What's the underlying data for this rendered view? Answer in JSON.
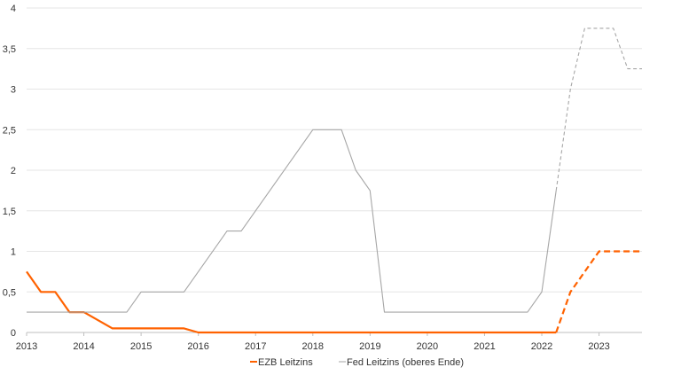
{
  "chart_data": {
    "type": "line",
    "title": "",
    "xlabel": "",
    "ylabel": "",
    "xlim": [
      2013,
      2023.75
    ],
    "ylim": [
      0,
      4
    ],
    "x_ticks": [
      "2013",
      "2014",
      "2015",
      "2016",
      "2017",
      "2018",
      "2019",
      "2020",
      "2021",
      "2022",
      "2023"
    ],
    "y_ticks": [
      "0",
      "0,5",
      "1",
      "1,5",
      "2",
      "2,5",
      "3",
      "3,5",
      "4"
    ],
    "grid": "horizontal",
    "legend": "bottom",
    "series": [
      {
        "name": "EZB Leitzins",
        "color": "#ff6200",
        "style": "solid-then-dashed",
        "points": [
          [
            2013.0,
            0.75
          ],
          [
            2013.25,
            0.5
          ],
          [
            2013.5,
            0.5
          ],
          [
            2013.75,
            0.25
          ],
          [
            2014.0,
            0.25
          ],
          [
            2014.5,
            0.05
          ],
          [
            2015.75,
            0.05
          ],
          [
            2016.0,
            0.0
          ],
          [
            2022.25,
            0.0
          ]
        ],
        "forecast_points": [
          [
            2022.25,
            0.0
          ],
          [
            2022.5,
            0.5
          ],
          [
            2023.0,
            1.0
          ],
          [
            2023.75,
            1.0
          ]
        ]
      },
      {
        "name": "Fed Leitzins (oberes Ende)",
        "color": "#a6a6a6",
        "style": "solid-then-dashed",
        "points": [
          [
            2013.0,
            0.25
          ],
          [
            2014.75,
            0.25
          ],
          [
            2015.0,
            0.5
          ],
          [
            2015.75,
            0.5
          ],
          [
            2016.5,
            1.25
          ],
          [
            2016.75,
            1.25
          ],
          [
            2018.0,
            2.5
          ],
          [
            2018.5,
            2.5
          ],
          [
            2018.75,
            2.0
          ],
          [
            2019.0,
            1.75
          ],
          [
            2019.25,
            0.25
          ],
          [
            2021.75,
            0.25
          ],
          [
            2022.0,
            0.5
          ],
          [
            2022.25,
            1.75
          ]
        ],
        "forecast_points": [
          [
            2022.25,
            1.75
          ],
          [
            2022.5,
            3.0
          ],
          [
            2022.75,
            3.75
          ],
          [
            2023.25,
            3.75
          ],
          [
            2023.5,
            3.25
          ],
          [
            2023.75,
            3.25
          ]
        ]
      }
    ]
  }
}
